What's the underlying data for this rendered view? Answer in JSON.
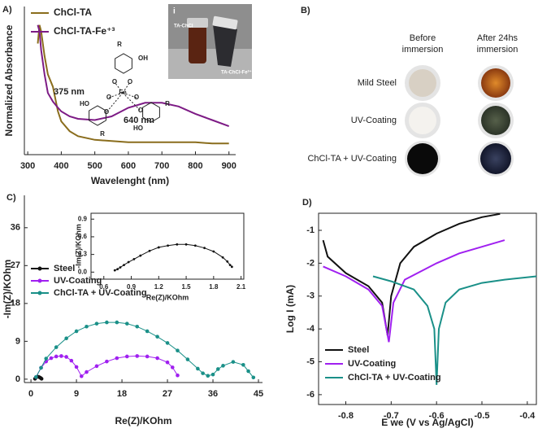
{
  "chart_data": [
    {
      "label": "A)",
      "type": "line",
      "x_label": "Wavelenght (nm)",
      "y_label": "Normalized Absorbance",
      "x": [
        330,
        335,
        340,
        350,
        360,
        375,
        390,
        400,
        425,
        450,
        500,
        550,
        600,
        650,
        700,
        750,
        800,
        850,
        900
      ],
      "xlim": [
        290,
        920
      ],
      "xticks": [
        300,
        400,
        500,
        600,
        700,
        800,
        900
      ],
      "ylim": [
        -0.05,
        1.15
      ],
      "legend_position": "upper left",
      "series": [
        {
          "name": "ChCl-TA",
          "color": "#8a6d1d",
          "values": [
            0.85,
            1.0,
            0.95,
            0.75,
            0.6,
            0.5,
            0.3,
            0.22,
            0.14,
            0.1,
            0.07,
            0.06,
            0.05,
            0.05,
            0.05,
            0.05,
            0.05,
            0.04,
            0.04
          ]
        },
        {
          "name": "ChCl-TA-Fe⁺³",
          "color": "#7d1b85",
          "values": [
            1.0,
            0.95,
            0.8,
            0.6,
            0.45,
            0.38,
            0.33,
            0.3,
            0.26,
            0.24,
            0.23,
            0.26,
            0.33,
            0.37,
            0.37,
            0.34,
            0.28,
            0.23,
            0.18
          ]
        }
      ],
      "annotations": [
        "375 nm",
        "640 nm"
      ],
      "structure_labels": [
        "R",
        "OH",
        "O",
        "O",
        "Fe",
        "O",
        "O",
        "O",
        "O",
        "HO",
        "R",
        "R",
        "HO"
      ],
      "photo": {
        "label": "i",
        "captions": [
          "TA-ChCl",
          "TA-ChCl-Fe³⁺"
        ]
      }
    },
    {
      "label": "C)",
      "type": "line",
      "markers": true,
      "x_label": "Re(Z)/KOhm",
      "y_label": "-Im(Z)/KOhm",
      "xlim": [
        -1.3,
        45.8
      ],
      "xticks": [
        0,
        9,
        18,
        27,
        36,
        45
      ],
      "ylim": [
        -0.8,
        43.7
      ],
      "yticks": [
        0,
        9,
        18,
        27,
        36
      ],
      "legend_position": "center left",
      "series": [
        {
          "name": "Steel",
          "color": "#111111",
          "x": [
            0.8,
            1.0,
            1.3,
            1.6,
            1.9,
            2.1
          ],
          "values": [
            0.1,
            0.4,
            0.6,
            0.5,
            0.3,
            0.1
          ]
        },
        {
          "name": "UV-Coating",
          "color": "#a020f0",
          "x": [
            1,
            2,
            3,
            4,
            5,
            6,
            7,
            8,
            9,
            10,
            11,
            13,
            15,
            17,
            19,
            21,
            23,
            25,
            27,
            28,
            29
          ],
          "values": [
            0.5,
            2.7,
            4.2,
            5.0,
            5.4,
            5.5,
            5.3,
            4.4,
            2.9,
            0.7,
            1.7,
            3.1,
            4.2,
            5.0,
            5.4,
            5.5,
            5.4,
            5.0,
            4.0,
            2.8,
            0.9
          ]
        },
        {
          "name": "ChCl-TA + UV-Coating",
          "color": "#1a9088",
          "x": [
            1,
            2,
            3,
            5,
            7,
            9,
            11,
            13,
            15,
            17,
            19,
            21,
            23,
            25,
            27,
            29,
            31,
            33,
            34,
            35,
            36,
            37,
            38,
            40,
            42,
            43,
            44
          ],
          "values": [
            0.5,
            2.7,
            4.9,
            7.6,
            9.7,
            11.4,
            12.5,
            13.2,
            13.5,
            13.5,
            13.2,
            12.5,
            11.4,
            10.1,
            8.6,
            6.8,
            4.7,
            2.5,
            1.4,
            0.8,
            1.1,
            2.4,
            3.2,
            4.1,
            3.4,
            1.9,
            0.4
          ]
        }
      ]
    },
    {
      "type": "line",
      "markers": true,
      "x_label": "Re(Z)/KOhm",
      "y_label": "-Im(Z)/KOhm",
      "xlim": [
        0.46,
        2.13
      ],
      "xticks": [
        0.6,
        0.9,
        1.2,
        1.5,
        1.8,
        2.1
      ],
      "ylim": [
        -0.12,
        1.0
      ],
      "yticks": [
        {
          "value": 0,
          "label": "0.0"
        },
        0.3,
        0.6,
        0.9
      ],
      "series": [
        {
          "color": "#111111",
          "x": [
            0.72,
            0.75,
            0.78,
            0.82,
            0.87,
            0.93,
            1.0,
            1.1,
            1.2,
            1.3,
            1.4,
            1.5,
            1.6,
            1.7,
            1.8,
            1.9,
            1.95,
            1.98,
            2.0
          ],
          "values": [
            0.03,
            0.05,
            0.08,
            0.12,
            0.17,
            0.22,
            0.28,
            0.36,
            0.42,
            0.45,
            0.47,
            0.47,
            0.45,
            0.41,
            0.35,
            0.25,
            0.18,
            0.12,
            0.09
          ]
        }
      ]
    },
    {
      "label": "D)",
      "type": "line",
      "x_label": "E we (V vs Ag/AgCl)",
      "y_label": "Log I (mA)",
      "xlim": [
        -0.86,
        -0.38
      ],
      "xticks": [
        -0.8,
        -0.7,
        -0.6,
        -0.5,
        -0.4
      ],
      "ylim": [
        -6.3,
        -0.48
      ],
      "yticks": [
        -1,
        -2,
        -3,
        -4,
        -5,
        -6
      ],
      "legend_position": "lower left",
      "series": [
        {
          "name": "Steel",
          "color": "#111111",
          "x": [
            -0.85,
            -0.84,
            -0.8,
            -0.75,
            -0.72,
            -0.708,
            -0.7,
            -0.68,
            -0.65,
            -0.6,
            -0.55,
            -0.5,
            -0.46
          ],
          "values": [
            -1.3,
            -1.8,
            -2.3,
            -2.7,
            -3.2,
            -4.2,
            -3.0,
            -2.0,
            -1.5,
            -1.1,
            -0.8,
            -0.6,
            -0.5
          ]
        },
        {
          "name": "UV-Coating",
          "color": "#a020f0",
          "x": [
            -0.85,
            -0.8,
            -0.75,
            -0.72,
            -0.705,
            -0.695,
            -0.67,
            -0.6,
            -0.55,
            -0.5,
            -0.45
          ],
          "values": [
            -2.1,
            -2.4,
            -2.8,
            -3.3,
            -4.4,
            -3.2,
            -2.5,
            -2.0,
            -1.7,
            -1.5,
            -1.3
          ]
        },
        {
          "name": "ChCl-TA + UV-Coating",
          "color": "#1a9088",
          "x": [
            -0.74,
            -0.7,
            -0.65,
            -0.62,
            -0.605,
            -0.6,
            -0.595,
            -0.58,
            -0.55,
            -0.5,
            -0.45,
            -0.38
          ],
          "values": [
            -2.4,
            -2.55,
            -2.8,
            -3.3,
            -4.0,
            -5.7,
            -4.0,
            -3.2,
            -2.8,
            -2.6,
            -2.5,
            -2.4
          ]
        }
      ]
    }
  ],
  "photo_panel": {
    "label": "B)",
    "column_headers": [
      [
        "Before",
        "immersion"
      ],
      [
        "After 24hs",
        "immersion"
      ]
    ],
    "row_labels": [
      "Mild Steel",
      "UV-Coating",
      "ChCl-TA + UV-Coating"
    ]
  }
}
